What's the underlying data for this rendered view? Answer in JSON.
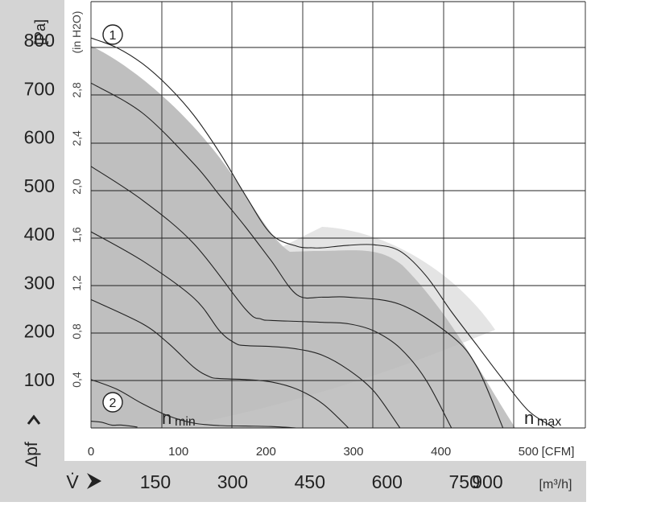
{
  "chart_data": {
    "type": "line",
    "ylabel_unit": "[Pa]",
    "ylabel_unit2": "(in H2O)",
    "ylabel_symbol": "Δpf",
    "xlabel_symbol": "V̇",
    "x_unit_m3h": "[m³/h]",
    "x_unit_cfm": "[CFM]",
    "x_ticks_m3h": [
      "150",
      "300",
      "450",
      "600",
      "750",
      "900"
    ],
    "x_ticks_cfm": [
      "0",
      "100",
      "200",
      "300",
      "400",
      "500"
    ],
    "y_ticks_pa": [
      "100",
      "200",
      "300",
      "400",
      "500",
      "600",
      "700",
      "800"
    ],
    "y_ticks_inh2o": [
      "0,4",
      "0,8",
      "1,2",
      "1,6",
      "2,0",
      "2,4",
      "2,8"
    ],
    "xlim": [
      0,
      960
    ],
    "ylim": [
      0,
      880
    ],
    "grid": true,
    "annotations": [
      "1",
      "2",
      "n",
      "min",
      "n",
      "max"
    ],
    "series": [
      {
        "x": [
          0,
          50,
          100,
          150,
          200,
          250,
          300,
          350,
          400,
          430,
          450,
          500,
          550,
          600,
          650,
          700,
          750,
          800,
          850,
          900
        ],
        "y": [
          805,
          785,
          752,
          705,
          645,
          568,
          480,
          400,
          375,
          372,
          372,
          377,
          378,
          365,
          315,
          240,
          170,
          100,
          35,
          0
        ]
      },
      {
        "x": [
          0,
          100,
          200,
          250,
          300,
          350,
          400,
          450,
          500,
          600,
          700,
          750,
          800
        ],
        "y": [
          712,
          650,
          545,
          480,
          415,
          345,
          275,
          270,
          270,
          255,
          190,
          125,
          0
        ]
      },
      {
        "x": [
          0,
          100,
          200,
          300,
          330,
          350,
          400,
          450,
          500,
          550,
          600,
          650,
          700
        ],
        "y": [
          540,
          470,
          380,
          245,
          225,
          222,
          220,
          218,
          215,
          200,
          165,
          100,
          0
        ]
      },
      {
        "x": [
          0,
          100,
          200,
          250,
          280,
          300,
          350,
          400,
          450,
          500,
          550,
          600
        ],
        "y": [
          405,
          345,
          268,
          200,
          175,
          170,
          168,
          163,
          150,
          120,
          75,
          0
        ]
      },
      {
        "x": [
          0,
          100,
          150,
          200,
          230,
          250,
          300,
          350,
          400,
          450,
          500
        ],
        "y": [
          265,
          215,
          175,
          125,
          106,
          102,
          100,
          95,
          80,
          50,
          0
        ]
      },
      {
        "x": [
          0,
          50,
          100,
          150,
          200,
          250,
          300,
          350,
          400
        ],
        "y": [
          100,
          80,
          50,
          25,
          10,
          5,
          4,
          3,
          0
        ]
      },
      {
        "x": [
          0,
          20,
          40,
          60,
          90
        ],
        "y": [
          14,
          12,
          6,
          6,
          2
        ]
      }
    ]
  }
}
